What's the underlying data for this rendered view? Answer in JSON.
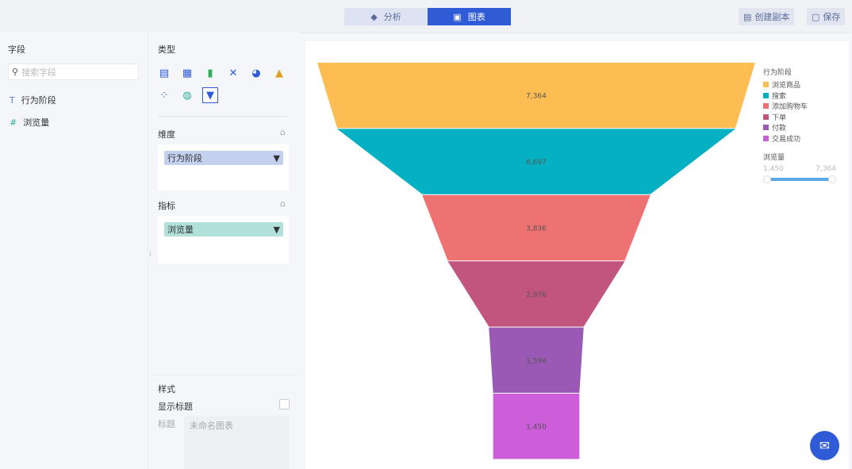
{
  "toolbar": {
    "tabs": [
      {
        "label": "分析",
        "icon": "layers-icon"
      },
      {
        "label": "图表",
        "icon": "monitor-chart-icon"
      }
    ],
    "copy_label": "创建副本",
    "save_label": "保存"
  },
  "fields": {
    "title": "字段",
    "search_placeholder": "搜索字段",
    "items": [
      {
        "type": "T",
        "label": "行为阶段"
      },
      {
        "type": "#",
        "label": "浏览量"
      }
    ]
  },
  "config": {
    "type_title": "类型",
    "chart_types": [
      "table",
      "pivot-table",
      "bar",
      "line",
      "pie",
      "combo",
      "scatter",
      "map",
      "funnel"
    ],
    "selected_type": "funnel",
    "dimension_title": "维度",
    "dimension_value": "行为阶段",
    "metric_title": "指标",
    "metric_value": "浏览量",
    "style_title": "样式",
    "show_title_label": "显示标题",
    "show_title_checked": false,
    "title_label": "标题",
    "title_placeholder": "未命名图表"
  },
  "chart_data": {
    "type": "funnel",
    "categories": [
      "浏览商品",
      "搜索",
      "添加购物车",
      "下单",
      "付款",
      "交易成功"
    ],
    "values": [
      7364,
      6697,
      3836,
      2976,
      1594,
      1450
    ],
    "labels": [
      "7,364",
      "6,697",
      "3,836",
      "2,976",
      "1,594",
      "1,450"
    ],
    "colors": [
      "#fdbd52",
      "#05b0c2",
      "#ef7272",
      "#c2557e",
      "#9b59b6",
      "#cc5fd9"
    ],
    "legend_title": "行为阶段",
    "legend_position": "right",
    "range_title": "浏览量",
    "range_min": "1,450",
    "range_max": "7,364"
  }
}
